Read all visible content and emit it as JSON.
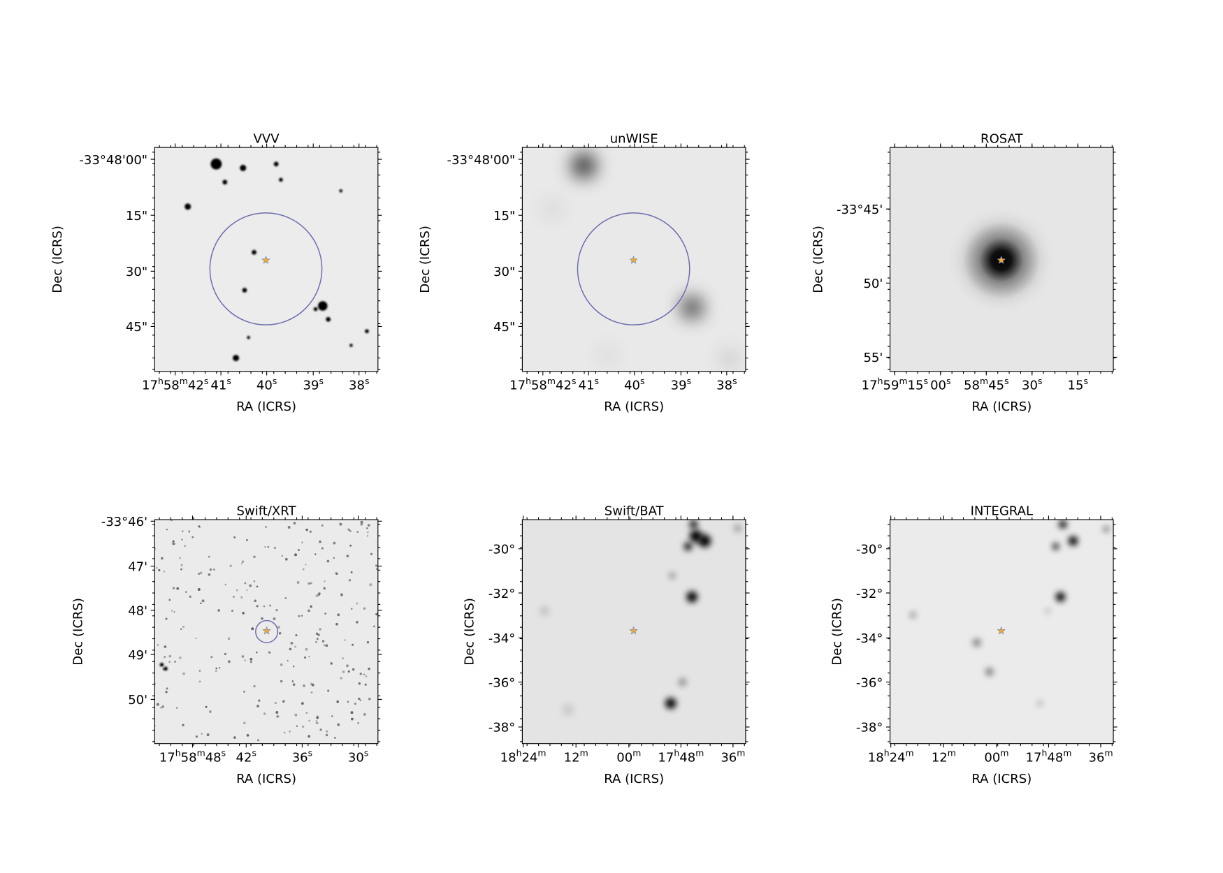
{
  "panels": [
    {
      "title": "VVV",
      "x_label": "RA (ICRS)",
      "y_label": "Dec (ICRS)",
      "x_ticks": [
        [
          "17",
          "h",
          "58",
          "m",
          "42",
          "s"
        ],
        [
          "41",
          "s"
        ],
        [
          "40",
          "s"
        ],
        [
          "39",
          "s"
        ],
        [
          "38",
          "s"
        ]
      ],
      "y_ticks": [
        "-33°48'00\"",
        "15\"",
        "30\"",
        "45\""
      ]
    },
    {
      "title": "unWISE",
      "x_label": "RA (ICRS)",
      "y_label": "Dec (ICRS)",
      "x_ticks": [
        [
          "17",
          "h",
          "58",
          "m",
          "42",
          "s"
        ],
        [
          "41",
          "s"
        ],
        [
          "40",
          "s"
        ],
        [
          "39",
          "s"
        ],
        [
          "38",
          "s"
        ]
      ],
      "y_ticks": [
        "-33°48'00\"",
        "15\"",
        "30\"",
        "45\""
      ]
    },
    {
      "title": "ROSAT",
      "x_label": "RA (ICRS)",
      "y_label": "Dec (ICRS)",
      "x_ticks": [
        [
          "17",
          "h",
          "59",
          "m",
          "15",
          "s"
        ],
        [
          "00",
          "s"
        ],
        [
          "58",
          "m",
          "45",
          "s"
        ],
        [
          "30",
          "s"
        ],
        [
          "15",
          "s"
        ]
      ],
      "y_ticks": [
        "-33°45'",
        "50'",
        "55'"
      ]
    },
    {
      "title": "Swift/XRT",
      "x_label": "RA (ICRS)",
      "y_label": "Dec (ICRS)",
      "x_ticks": [
        [
          "17",
          "h",
          "58",
          "m",
          "48",
          "s"
        ],
        [
          "42",
          "s"
        ],
        [
          "36",
          "s"
        ],
        [
          "30",
          "s"
        ]
      ],
      "y_ticks": [
        "-33°46'",
        "47'",
        "48'",
        "49'",
        "50'"
      ]
    },
    {
      "title": "Swift/BAT",
      "x_label": "RA (ICRS)",
      "y_label": "Dec (ICRS)",
      "x_ticks": [
        [
          "18",
          "h",
          "24",
          "m"
        ],
        [
          "12",
          "m"
        ],
        [
          "00",
          "m"
        ],
        [
          "17",
          "h",
          "48",
          "m"
        ],
        [
          "36",
          "m"
        ]
      ],
      "y_ticks": [
        "-30°",
        "-32°",
        "-34°",
        "-36°",
        "-38°"
      ]
    },
    {
      "title": "INTEGRAL",
      "x_label": "RA (ICRS)",
      "y_label": "Dec (ICRS)",
      "x_ticks": [
        [
          "18",
          "h",
          "24",
          "m"
        ],
        [
          "12",
          "m"
        ],
        [
          "00",
          "m"
        ],
        [
          "17",
          "h",
          "48",
          "m"
        ],
        [
          "36",
          "m"
        ]
      ],
      "y_ticks": [
        "-30°",
        "-32°",
        "-34°",
        "-36°",
        "-38°"
      ]
    }
  ]
}
